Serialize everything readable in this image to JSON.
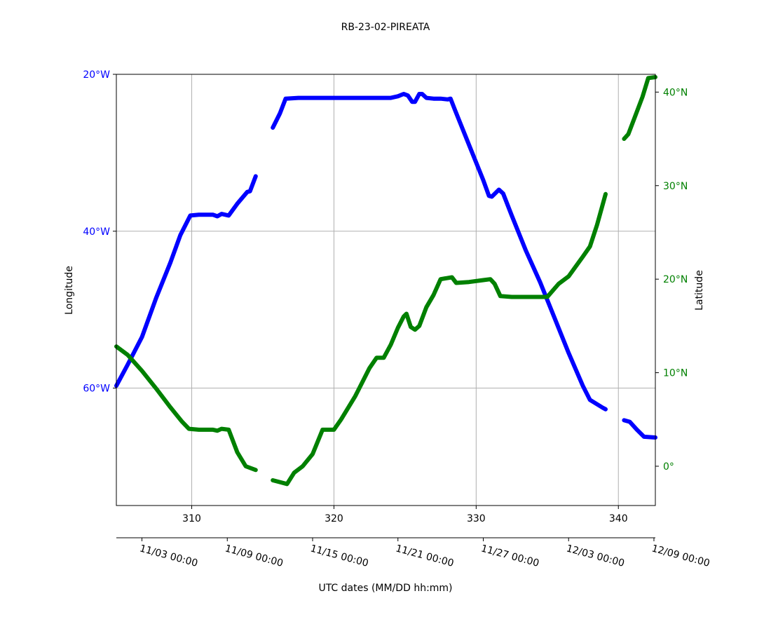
{
  "chart_data": {
    "type": "line",
    "title": "RB-23-02-PIREATA",
    "xlabel": "UTC dates (MM/DD hh:mm)",
    "ylabel_left": "Longitude",
    "ylabel_right": "Latitude",
    "grid": true,
    "xlim": [
      304.7,
      342.6
    ],
    "x_ticks": [
      310,
      320,
      330,
      340
    ],
    "y_left": {
      "lim": [
        -74.97,
        -20
      ],
      "ticks": [
        -20,
        -40,
        -60
      ],
      "tick_labels": [
        "20°W",
        "40°W",
        "60°W"
      ],
      "color": "#0000ff"
    },
    "y_right": {
      "lim": [
        -4.2,
        41.9
      ],
      "ticks": [
        0,
        10,
        20,
        30,
        40
      ],
      "tick_labels": [
        "0°",
        "10°N",
        "20°N",
        "30°N",
        "40°N"
      ],
      "color": "#008000"
    },
    "date_axis": {
      "ticks": [
        306.5,
        312.5,
        318.5,
        324.5,
        330.5,
        336.5,
        342.5
      ],
      "tick_labels": [
        "11/03 00:00",
        "11/09 00:00",
        "11/15 00:00",
        "11/21 00:00",
        "11/27 00:00",
        "12/03 00:00",
        "12/09 00:00"
      ]
    },
    "series": [
      {
        "axis": "left",
        "color": "#0000ff",
        "segments": [
          [
            [
              304.7,
              -59.7
            ],
            [
              305.5,
              -57
            ],
            [
              306.5,
              -53.5
            ],
            [
              307.5,
              -48.5
            ],
            [
              308.5,
              -44
            ],
            [
              309.2,
              -40.5
            ],
            [
              309.9,
              -38
            ],
            [
              310.5,
              -37.9
            ],
            [
              311.5,
              -37.9
            ],
            [
              311.8,
              -38.1
            ],
            [
              312.1,
              -37.8
            ],
            [
              312.6,
              -38
            ],
            [
              313.2,
              -36.5
            ],
            [
              313.9,
              -35
            ],
            [
              314.1,
              -34.9
            ],
            [
              314.5,
              -33
            ]
          ],
          [
            [
              315.7,
              -26.8
            ],
            [
              316.2,
              -25
            ],
            [
              316.6,
              -23.1
            ],
            [
              317.5,
              -23
            ],
            [
              320,
              -23
            ],
            [
              322.5,
              -23
            ],
            [
              324,
              -23
            ],
            [
              324.5,
              -22.8
            ],
            [
              324.9,
              -22.5
            ],
            [
              325.2,
              -22.7
            ],
            [
              325.5,
              -23.5
            ],
            [
              325.7,
              -23.5
            ],
            [
              326,
              -22.5
            ],
            [
              326.2,
              -22.5
            ],
            [
              326.5,
              -23
            ],
            [
              327,
              -23.1
            ],
            [
              327.5,
              -23.1
            ],
            [
              328,
              -23.2
            ],
            [
              328.2,
              -23.1
            ],
            [
              328.5,
              -24.5
            ],
            [
              329.5,
              -29
            ],
            [
              330.5,
              -33.5
            ],
            [
              330.9,
              -35.5
            ],
            [
              331.1,
              -35.6
            ],
            [
              331.6,
              -34.7
            ],
            [
              331.9,
              -35.2
            ],
            [
              332.5,
              -38
            ],
            [
              333.5,
              -42.5
            ],
            [
              334.5,
              -46.5
            ],
            [
              335.5,
              -51
            ],
            [
              336.5,
              -55.5
            ],
            [
              337.5,
              -59.7
            ],
            [
              338,
              -61.5
            ],
            [
              338.9,
              -62.5
            ],
            [
              339.1,
              -62.7
            ]
          ],
          [
            [
              340.4,
              -64.1
            ],
            [
              340.8,
              -64.3
            ],
            [
              341.3,
              -65.3
            ],
            [
              341.8,
              -66.2
            ],
            [
              342.6,
              -66.3
            ]
          ]
        ]
      },
      {
        "axis": "right",
        "color": "#008000",
        "segments": [
          [
            [
              304.7,
              12.8
            ],
            [
              305.5,
              11.9
            ],
            [
              306.5,
              10.2
            ],
            [
              307.5,
              8.3
            ],
            [
              308.5,
              6.3
            ],
            [
              309.3,
              4.8
            ],
            [
              309.8,
              4
            ],
            [
              310.5,
              3.9
            ],
            [
              311.5,
              3.9
            ],
            [
              311.8,
              3.8
            ],
            [
              312.1,
              4
            ],
            [
              312.6,
              3.9
            ],
            [
              313.2,
              1.5
            ],
            [
              313.8,
              0
            ],
            [
              314.5,
              -0.4
            ]
          ],
          [
            [
              315.7,
              -1.5
            ],
            [
              316.2,
              -1.7
            ],
            [
              316.7,
              -1.9
            ],
            [
              317.2,
              -0.7
            ],
            [
              317.8,
              0
            ],
            [
              318.5,
              1.3
            ],
            [
              319.2,
              3.9
            ],
            [
              320,
              3.9
            ],
            [
              320.5,
              5
            ],
            [
              321.5,
              7.5
            ],
            [
              322.5,
              10.5
            ],
            [
              323,
              11.6
            ],
            [
              323.5,
              11.6
            ],
            [
              324,
              13
            ],
            [
              324.5,
              14.8
            ],
            [
              324.9,
              16
            ],
            [
              325.1,
              16.3
            ],
            [
              325.4,
              14.9
            ],
            [
              325.7,
              14.6
            ],
            [
              326,
              15
            ],
            [
              326.5,
              17
            ],
            [
              327,
              18.3
            ],
            [
              327.5,
              20
            ],
            [
              328.3,
              20.2
            ],
            [
              328.6,
              19.6
            ],
            [
              329.5,
              19.7
            ],
            [
              330.5,
              19.9
            ],
            [
              331,
              20
            ],
            [
              331.3,
              19.5
            ],
            [
              331.7,
              18.2
            ],
            [
              332.5,
              18.1
            ],
            [
              334.5,
              18.1
            ],
            [
              335,
              18.1
            ],
            [
              335.8,
              19.5
            ],
            [
              336.5,
              20.3
            ],
            [
              337.5,
              22.4
            ],
            [
              338,
              23.5
            ],
            [
              338.5,
              25.8
            ],
            [
              339.1,
              29.1
            ]
          ],
          [
            [
              340.4,
              35
            ],
            [
              340.7,
              35.5
            ],
            [
              341.2,
              37.5
            ],
            [
              341.7,
              39.5
            ],
            [
              342.1,
              41.5
            ],
            [
              342.6,
              41.6
            ]
          ]
        ]
      }
    ]
  }
}
